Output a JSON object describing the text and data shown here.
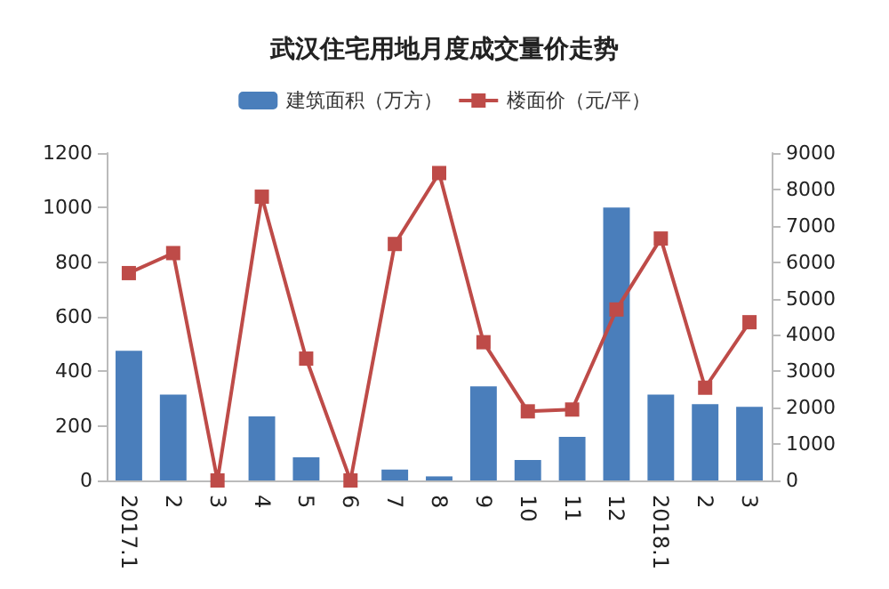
{
  "chart_data": {
    "type": "bar",
    "title": "武汉住宅用地月度成交量价走势",
    "categories": [
      "2017.1",
      "2",
      "3",
      "4",
      "5",
      "6",
      "7",
      "8",
      "9",
      "10",
      "11",
      "12",
      "2018.1",
      "2",
      "3"
    ],
    "series": [
      {
        "name": "建筑面积（万方）",
        "color": "#4a7ebb",
        "values": [
          475,
          315,
          0,
          235,
          85,
          0,
          40,
          15,
          345,
          75,
          160,
          1000,
          315,
          280,
          270
        ]
      },
      {
        "name": "楼面价（元/平）",
        "type": "line",
        "axis": "y2",
        "color": "#be4b48",
        "marker": "square",
        "values": [
          5700,
          6250,
          0,
          7800,
          3350,
          0,
          6500,
          8450,
          3800,
          1900,
          1950,
          4700,
          6650,
          2550,
          4350
        ]
      }
    ],
    "ylim": [
      0,
      1200
    ],
    "yticks": [
      0,
      200,
      400,
      600,
      800,
      1000,
      1200
    ],
    "y2lim": [
      0,
      9000
    ],
    "y2ticks": [
      0,
      1000,
      2000,
      3000,
      4000,
      5000,
      6000,
      7000,
      8000,
      9000
    ],
    "legend": "top",
    "grid": false
  }
}
